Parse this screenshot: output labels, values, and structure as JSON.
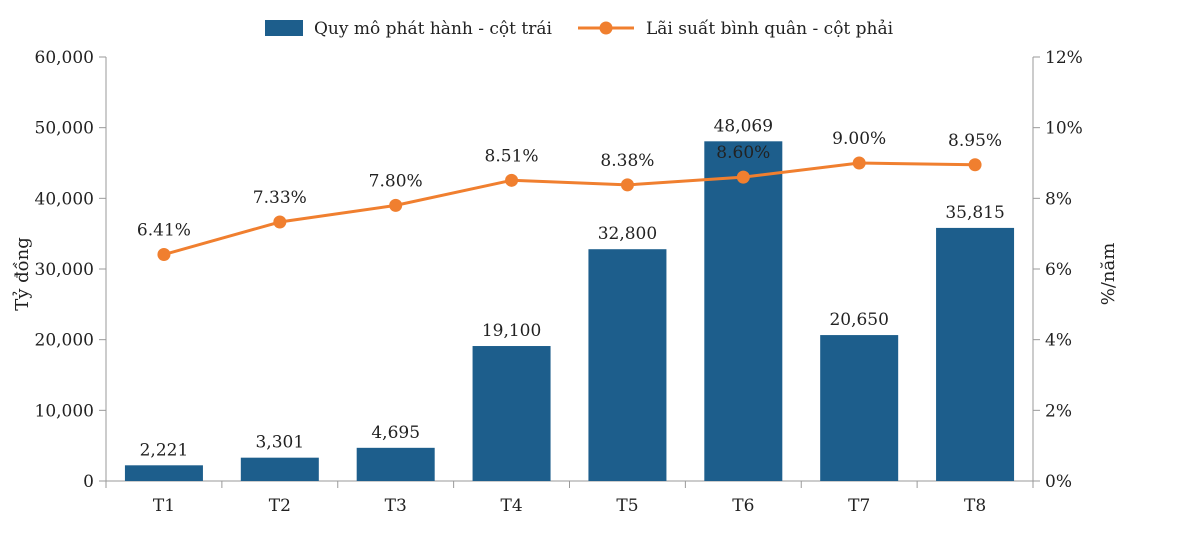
{
  "chart_data": {
    "type": "bar",
    "categories": [
      "T1",
      "T2",
      "T3",
      "T4",
      "T5",
      "T6",
      "T7",
      "T8"
    ],
    "series": [
      {
        "name": "Quy mô phát hành - cột trái",
        "type": "bar",
        "axis": "left",
        "values": [
          2221,
          3301,
          4695,
          19100,
          32800,
          48069,
          20650,
          35815
        ],
        "labels": [
          "2,221",
          "3,301",
          "4,695",
          "19,100",
          "32,800",
          "48,069",
          "20,650",
          "35,815"
        ],
        "color": "#1d5e8c"
      },
      {
        "name": "Lãi suất bình quân - cột phải",
        "type": "line",
        "axis": "right",
        "values": [
          6.41,
          7.33,
          7.8,
          8.51,
          8.38,
          8.6,
          9.0,
          8.95
        ],
        "labels": [
          "6.41%",
          "7.33%",
          "7.80%",
          "8.51%",
          "8.38%",
          "8.60%",
          "9.00%",
          "8.95%"
        ],
        "color": "#f07f2f"
      }
    ],
    "ylabel_left": "Tỷ đồng",
    "ylabel_right": "%/năm",
    "ylim_left": [
      0,
      60000
    ],
    "ylim_right": [
      0,
      12
    ],
    "yticks_left": [
      "0",
      "10,000",
      "20,000",
      "30,000",
      "40,000",
      "50,000",
      "60,000"
    ],
    "yticks_right": [
      "0%",
      "2%",
      "4%",
      "6%",
      "8%",
      "10%",
      "12%"
    ],
    "grid": false,
    "legend_position": "top",
    "highlight_label_color": "#dff3ff"
  }
}
